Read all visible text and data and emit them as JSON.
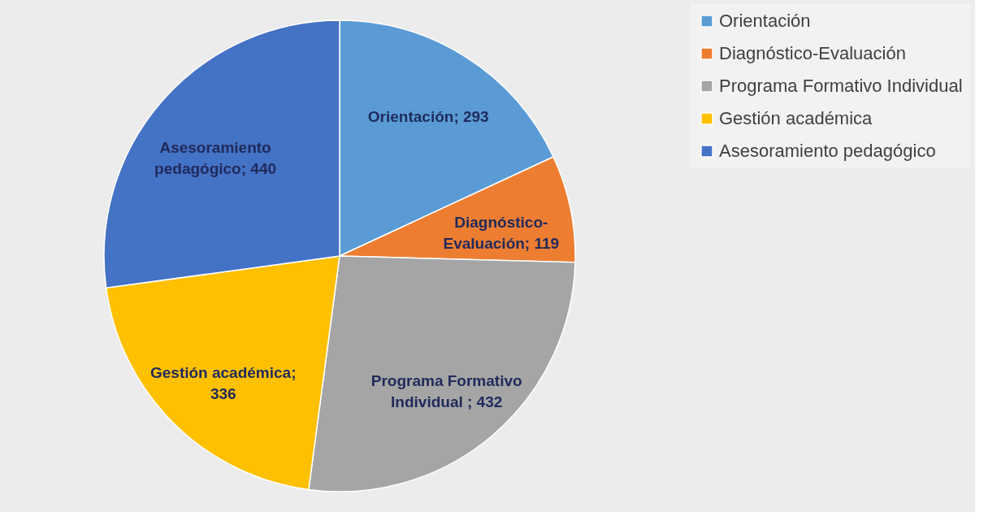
{
  "chart_data": {
    "type": "pie",
    "categories": [
      "Orientación",
      "Diagnóstico-Evaluación",
      "Programa Formativo Individual",
      "Gestión académica",
      "Asesoramiento pedagógico"
    ],
    "values": [
      293,
      119,
      432,
      336,
      440
    ],
    "colors": [
      "#5b9bd5",
      "#ed7d31",
      "#a5a5a5",
      "#ffc000",
      "#4472c4"
    ],
    "value_labels": [
      "Orientación; 293",
      "Diagnóstico-\nEvaluación; 119",
      "Programa Formativo\nIndividual ; 432",
      "Gestión académica;\n336",
      "Asesoramiento\npedagógico; 440"
    ],
    "legend": "right"
  }
}
